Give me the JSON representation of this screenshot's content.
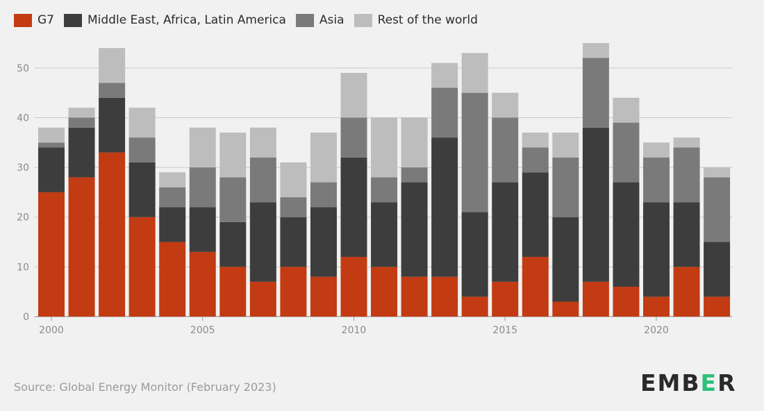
{
  "colors": {
    "G7": "#c23b12",
    "Middle East, Africa, Latin America": "#3d3d3d",
    "Asia": "#7a7a7a",
    "Rest of the world": "#bdbdbd",
    "grid": "#c9c9c9",
    "logo_accent": "#2fc07a"
  },
  "source": "Source: Global Energy Monitor (February 2023)",
  "logo": "EMBER",
  "chart_data": {
    "type": "bar",
    "stacked": true,
    "title": "",
    "xlabel": "",
    "ylabel": "",
    "ylim": [
      0,
      55
    ],
    "yticks": [
      0,
      10,
      20,
      30,
      40,
      50
    ],
    "xticks": [
      2000,
      2005,
      2010,
      2015,
      2020
    ],
    "grid": true,
    "legend_position": "top-left",
    "categories": [
      2000,
      2001,
      2002,
      2003,
      2004,
      2005,
      2006,
      2007,
      2008,
      2009,
      2010,
      2011,
      2012,
      2013,
      2014,
      2015,
      2016,
      2017,
      2018,
      2019,
      2020,
      2021,
      2022
    ],
    "series": [
      {
        "name": "G7",
        "values": [
          25,
          28,
          33,
          20,
          15,
          13,
          10,
          7,
          10,
          8,
          12,
          10,
          8,
          8,
          4,
          7,
          12,
          3,
          7,
          6,
          4,
          10,
          4
        ]
      },
      {
        "name": "Middle East, Africa, Latin America",
        "values": [
          9,
          10,
          11,
          11,
          7,
          9,
          9,
          16,
          10,
          14,
          20,
          13,
          19,
          28,
          17,
          20,
          17,
          17,
          31,
          21,
          19,
          13,
          11
        ]
      },
      {
        "name": "Asia",
        "values": [
          1,
          2,
          3,
          5,
          4,
          8,
          9,
          9,
          4,
          5,
          8,
          5,
          3,
          10,
          24,
          13,
          5,
          12,
          14,
          12,
          9,
          11,
          13
        ]
      },
      {
        "name": "Rest of the world",
        "values": [
          3,
          2,
          7,
          6,
          3,
          8,
          9,
          6,
          7,
          10,
          9,
          12,
          10,
          5,
          8,
          5,
          3,
          5,
          3,
          5,
          3,
          2,
          2
        ]
      }
    ]
  }
}
